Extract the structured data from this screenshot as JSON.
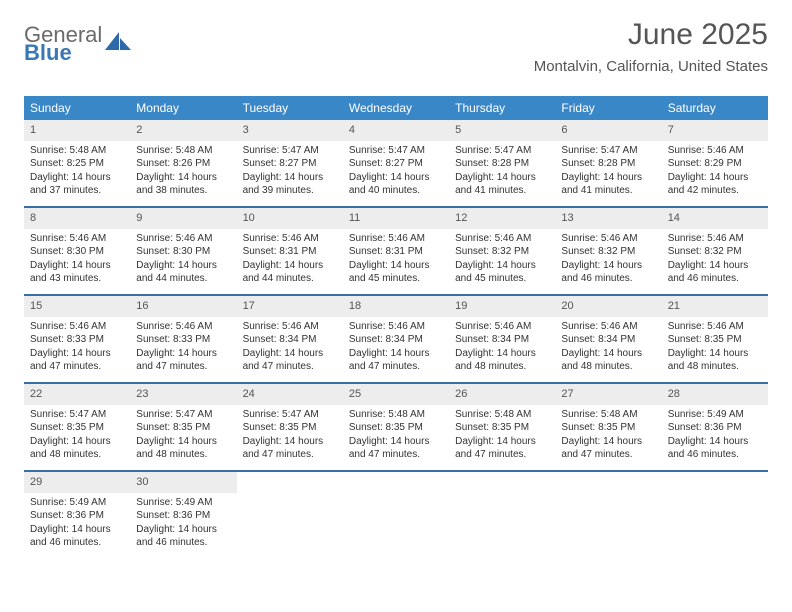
{
  "logo": {
    "word1": "General",
    "word2": "Blue"
  },
  "colors": {
    "header_bar": "#3a87c8",
    "week_divider": "#3a6fa5",
    "daynum_bg": "#ededed",
    "logo_blue": "#3a78b5",
    "logo_gray": "#6a6a6a",
    "text": "#333333",
    "title_text": "#555555"
  },
  "title": "June 2025",
  "location": "Montalvin, California, United States",
  "weekdays": [
    "Sunday",
    "Monday",
    "Tuesday",
    "Wednesday",
    "Thursday",
    "Friday",
    "Saturday"
  ],
  "weeks": [
    [
      {
        "n": "1",
        "sr": "5:48 AM",
        "ss": "8:25 PM",
        "dl": "14 hours and 37 minutes."
      },
      {
        "n": "2",
        "sr": "5:48 AM",
        "ss": "8:26 PM",
        "dl": "14 hours and 38 minutes."
      },
      {
        "n": "3",
        "sr": "5:47 AM",
        "ss": "8:27 PM",
        "dl": "14 hours and 39 minutes."
      },
      {
        "n": "4",
        "sr": "5:47 AM",
        "ss": "8:27 PM",
        "dl": "14 hours and 40 minutes."
      },
      {
        "n": "5",
        "sr": "5:47 AM",
        "ss": "8:28 PM",
        "dl": "14 hours and 41 minutes."
      },
      {
        "n": "6",
        "sr": "5:47 AM",
        "ss": "8:28 PM",
        "dl": "14 hours and 41 minutes."
      },
      {
        "n": "7",
        "sr": "5:46 AM",
        "ss": "8:29 PM",
        "dl": "14 hours and 42 minutes."
      }
    ],
    [
      {
        "n": "8",
        "sr": "5:46 AM",
        "ss": "8:30 PM",
        "dl": "14 hours and 43 minutes."
      },
      {
        "n": "9",
        "sr": "5:46 AM",
        "ss": "8:30 PM",
        "dl": "14 hours and 44 minutes."
      },
      {
        "n": "10",
        "sr": "5:46 AM",
        "ss": "8:31 PM",
        "dl": "14 hours and 44 minutes."
      },
      {
        "n": "11",
        "sr": "5:46 AM",
        "ss": "8:31 PM",
        "dl": "14 hours and 45 minutes."
      },
      {
        "n": "12",
        "sr": "5:46 AM",
        "ss": "8:32 PM",
        "dl": "14 hours and 45 minutes."
      },
      {
        "n": "13",
        "sr": "5:46 AM",
        "ss": "8:32 PM",
        "dl": "14 hours and 46 minutes."
      },
      {
        "n": "14",
        "sr": "5:46 AM",
        "ss": "8:32 PM",
        "dl": "14 hours and 46 minutes."
      }
    ],
    [
      {
        "n": "15",
        "sr": "5:46 AM",
        "ss": "8:33 PM",
        "dl": "14 hours and 47 minutes."
      },
      {
        "n": "16",
        "sr": "5:46 AM",
        "ss": "8:33 PM",
        "dl": "14 hours and 47 minutes."
      },
      {
        "n": "17",
        "sr": "5:46 AM",
        "ss": "8:34 PM",
        "dl": "14 hours and 47 minutes."
      },
      {
        "n": "18",
        "sr": "5:46 AM",
        "ss": "8:34 PM",
        "dl": "14 hours and 47 minutes."
      },
      {
        "n": "19",
        "sr": "5:46 AM",
        "ss": "8:34 PM",
        "dl": "14 hours and 48 minutes."
      },
      {
        "n": "20",
        "sr": "5:46 AM",
        "ss": "8:34 PM",
        "dl": "14 hours and 48 minutes."
      },
      {
        "n": "21",
        "sr": "5:46 AM",
        "ss": "8:35 PM",
        "dl": "14 hours and 48 minutes."
      }
    ],
    [
      {
        "n": "22",
        "sr": "5:47 AM",
        "ss": "8:35 PM",
        "dl": "14 hours and 48 minutes."
      },
      {
        "n": "23",
        "sr": "5:47 AM",
        "ss": "8:35 PM",
        "dl": "14 hours and 48 minutes."
      },
      {
        "n": "24",
        "sr": "5:47 AM",
        "ss": "8:35 PM",
        "dl": "14 hours and 47 minutes."
      },
      {
        "n": "25",
        "sr": "5:48 AM",
        "ss": "8:35 PM",
        "dl": "14 hours and 47 minutes."
      },
      {
        "n": "26",
        "sr": "5:48 AM",
        "ss": "8:35 PM",
        "dl": "14 hours and 47 minutes."
      },
      {
        "n": "27",
        "sr": "5:48 AM",
        "ss": "8:35 PM",
        "dl": "14 hours and 47 minutes."
      },
      {
        "n": "28",
        "sr": "5:49 AM",
        "ss": "8:36 PM",
        "dl": "14 hours and 46 minutes."
      }
    ],
    [
      {
        "n": "29",
        "sr": "5:49 AM",
        "ss": "8:36 PM",
        "dl": "14 hours and 46 minutes."
      },
      {
        "n": "30",
        "sr": "5:49 AM",
        "ss": "8:36 PM",
        "dl": "14 hours and 46 minutes."
      },
      null,
      null,
      null,
      null,
      null
    ]
  ],
  "labels": {
    "sunrise_prefix": "Sunrise: ",
    "sunset_prefix": "Sunset: ",
    "daylight_prefix": "Daylight: "
  }
}
